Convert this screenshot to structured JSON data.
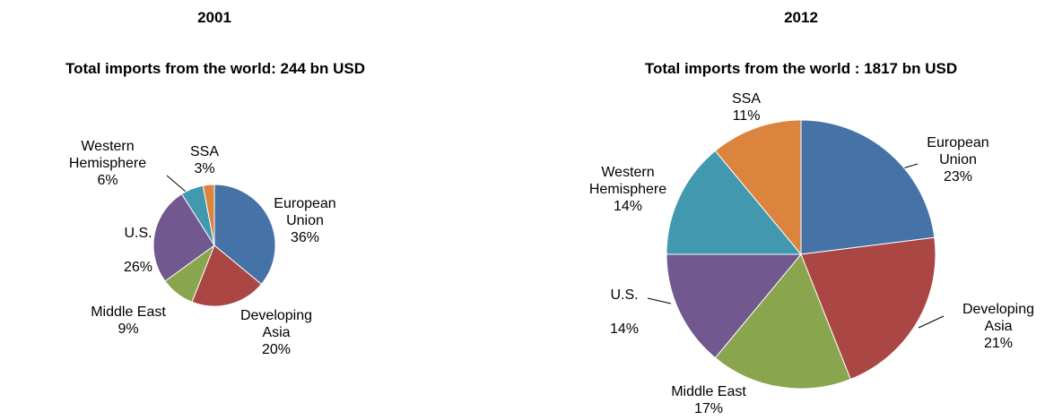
{
  "chart_data": [
    {
      "type": "pie",
      "title": "2001",
      "subtitle": "Total imports from the world:  244 bn USD",
      "categories": [
        "European Union",
        "Developing Asia",
        "Middle East",
        "U.S.",
        "Western Hemisphere",
        "SSA"
      ],
      "values": [
        36,
        20,
        9,
        26,
        6,
        3
      ],
      "value_labels": [
        "36%",
        "20%",
        "9%",
        "26%",
        "6%",
        "3%"
      ],
      "colors": [
        "#4572a7",
        "#aa4643",
        "#89a54e",
        "#71588f",
        "#4198af",
        "#db843d"
      ]
    },
    {
      "type": "pie",
      "title": "2012",
      "subtitle": "Total imports from the world : 1817 bn USD",
      "categories": [
        "European Union",
        "Developing Asia",
        "Middle East",
        "U.S.",
        "Western Hemisphere",
        "SSA"
      ],
      "values": [
        23,
        21,
        17,
        14,
        14,
        11
      ],
      "value_labels": [
        "23%",
        "21%",
        "17%",
        "14%",
        "14%",
        "11%"
      ],
      "colors": [
        "#4572a7",
        "#aa4643",
        "#89a54e",
        "#71588f",
        "#4198af",
        "#db843d"
      ]
    }
  ]
}
